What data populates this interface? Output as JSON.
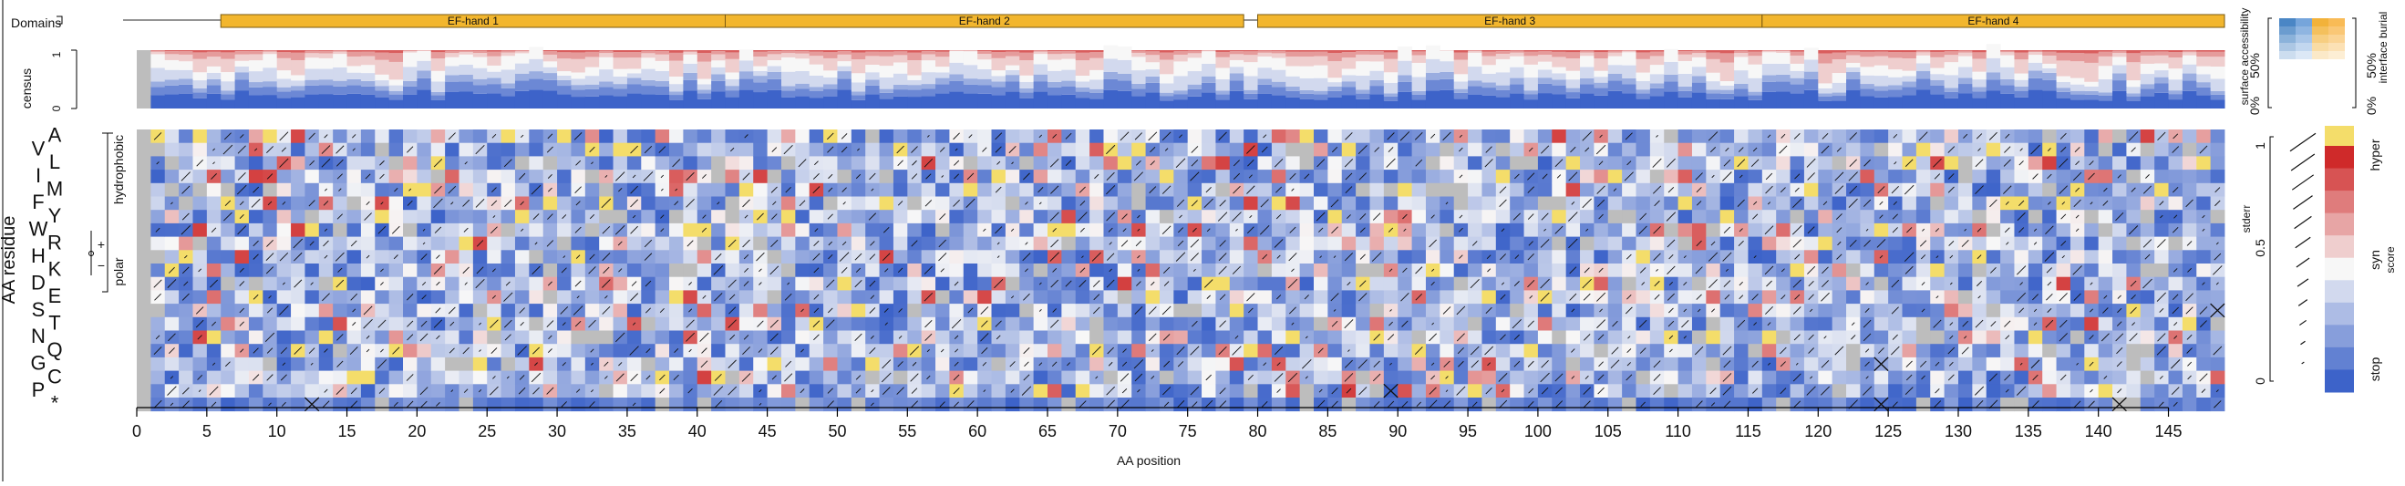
{
  "chart_data": {
    "type": "heatmap",
    "title": "",
    "xlabel": "AA position",
    "ylabel": "AA residue",
    "xlim": [
      0,
      149
    ],
    "x_ticks": [
      "0",
      "5",
      "10",
      "15",
      "20",
      "25",
      "30",
      "35",
      "40",
      "45",
      "50",
      "55",
      "60",
      "65",
      "70",
      "75",
      "80",
      "85",
      "90",
      "95",
      "100",
      "105",
      "110",
      "115",
      "120",
      "125",
      "130",
      "135",
      "140",
      "145"
    ],
    "residues": [
      "A",
      "V",
      "L",
      "I",
      "M",
      "F",
      "Y",
      "W",
      "R",
      "H",
      "K",
      "D",
      "E",
      "S",
      "T",
      "N",
      "Q",
      "G",
      "C",
      "P",
      "*"
    ],
    "group_labels": {
      "hydrophobic": "hydrophobic",
      "polar": "polar",
      "plus": "+",
      "minus": "−"
    },
    "domains_label": "Domains",
    "domains": [
      {
        "name": "EF-hand 1",
        "start": 6,
        "end": 42
      },
      {
        "name": "EF-hand 2",
        "start": 42,
        "end": 79
      },
      {
        "name": "EF-hand 3",
        "start": 80,
        "end": 116
      },
      {
        "name": "EF-hand 4",
        "start": 116,
        "end": 149
      }
    ],
    "census": {
      "label": "census",
      "y_ticks": [
        "0",
        "1"
      ]
    },
    "accessibility_legend": {
      "label": "surface accessibility",
      "ticks": [
        "0%",
        "50%"
      ]
    },
    "burial_legend": {
      "label": "interface burial",
      "ticks": [
        "0%",
        "50%"
      ]
    },
    "score_legend": {
      "categories": [
        "hyper",
        "syn",
        "stop"
      ],
      "label": "score"
    },
    "stderr_legend": {
      "label": "stderr",
      "ticks": [
        "0",
        "0.5",
        "1"
      ]
    },
    "colors": {
      "stop": "#3d63c9",
      "syn": "#f7f7f7",
      "hyper": "#cf2a2a",
      "wt": "#f4dd6a",
      "missing": "#bdbdbd",
      "domain": "#f2b62e"
    },
    "note_values": "cell scores range from -1 (stop, blue) through 0 (syn, white) to +1 (hyper, red)"
  }
}
